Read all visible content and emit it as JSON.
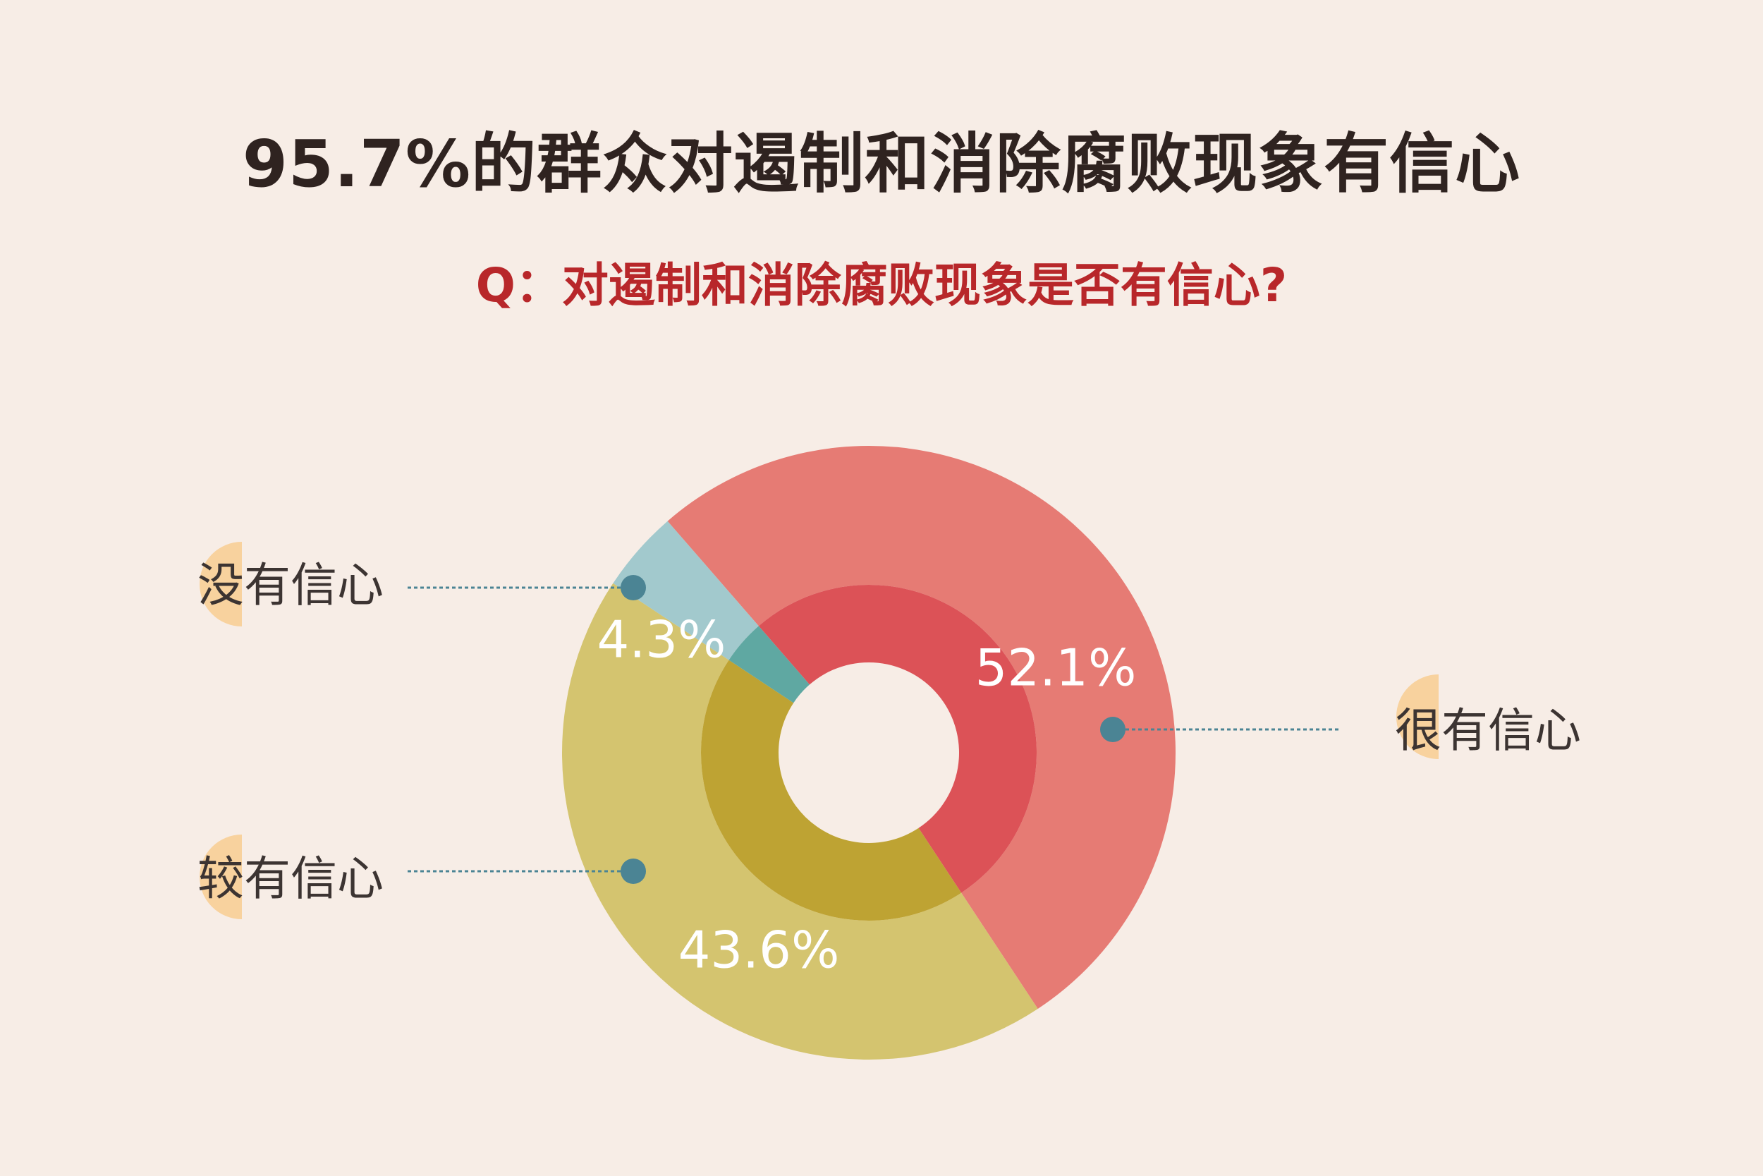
{
  "header": {
    "title": "95.7%的群众对遏制和消除腐败现象有信心",
    "question": "Q：对遏制和消除腐败现象是否有信心?"
  },
  "colors": {
    "background": "#f7ede6",
    "title": "#2f2320",
    "question": "#b8272a",
    "legend_badge": "#f8d29e",
    "leader_line": "#4b8494"
  },
  "chart_data": {
    "type": "pie",
    "categories": [
      "很有信心",
      "较有信心",
      "没有信心"
    ],
    "values": [
      52.1,
      43.6,
      4.3
    ],
    "value_labels": [
      "52.1%",
      "43.6%",
      "4.3%"
    ],
    "outer_colors": [
      "#e67b74",
      "#d4c46f",
      "#a2c9cd"
    ],
    "inner_colors": [
      "#dc5257",
      "#bea333",
      "#5fa8a2"
    ]
  }
}
